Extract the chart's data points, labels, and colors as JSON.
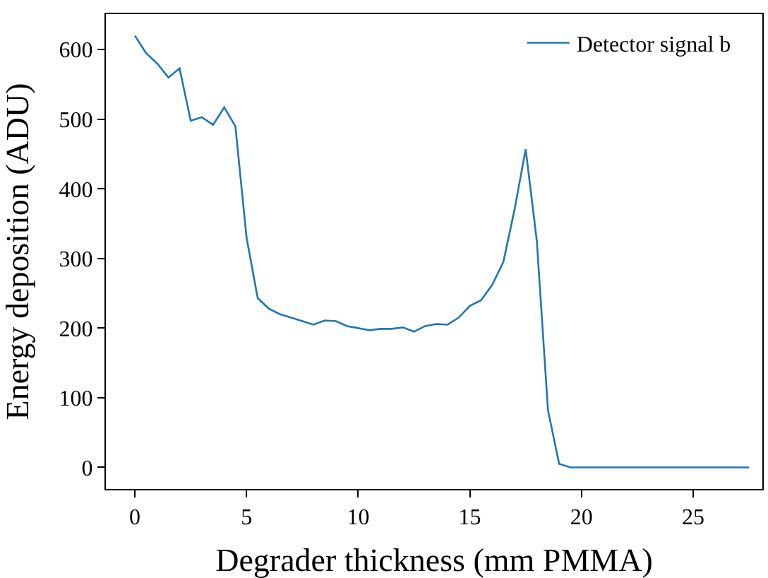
{
  "chart_data": {
    "type": "line",
    "xlabel": "Degrader thickness (mm PMMA)",
    "ylabel": "Energy deposition (ADU)",
    "xlim": [
      -1.3,
      28.1
    ],
    "ylim": [
      -31,
      651
    ],
    "xticks": [
      0,
      5,
      10,
      15,
      20,
      25
    ],
    "yticks": [
      0,
      100,
      200,
      300,
      400,
      500,
      600
    ],
    "legend": "top right",
    "series": [
      {
        "name": "Detector signal b⃗",
        "color": "#1f77b4",
        "x": [
          0,
          0.5,
          1,
          1.5,
          2,
          2.5,
          3,
          3.5,
          4,
          4.5,
          5,
          5.5,
          6,
          6.5,
          7,
          7.5,
          8,
          8.5,
          9,
          9.5,
          10,
          10.5,
          11,
          11.5,
          12,
          12.5,
          13,
          13.5,
          14,
          14.5,
          15,
          15.5,
          16,
          16.5,
          17,
          17.5,
          18,
          18.5,
          19,
          19.5,
          20,
          20.5,
          21,
          21.5,
          22,
          22.5,
          23,
          23.5,
          24,
          24.5,
          25,
          25.5,
          26,
          26.5,
          27,
          27.5
        ],
        "values": [
          620,
          595,
          580,
          560,
          573,
          498,
          503,
          492,
          517,
          490,
          330,
          243,
          228,
          220,
          215,
          210,
          205,
          211,
          210,
          203,
          200,
          197,
          199,
          199,
          201,
          195,
          203,
          206,
          205,
          215,
          232,
          240,
          262,
          295,
          370,
          457,
          325,
          82,
          5,
          0,
          0,
          0,
          0,
          0,
          0,
          0,
          0,
          0,
          0,
          0,
          0,
          0,
          0,
          0,
          0,
          0
        ]
      }
    ]
  }
}
